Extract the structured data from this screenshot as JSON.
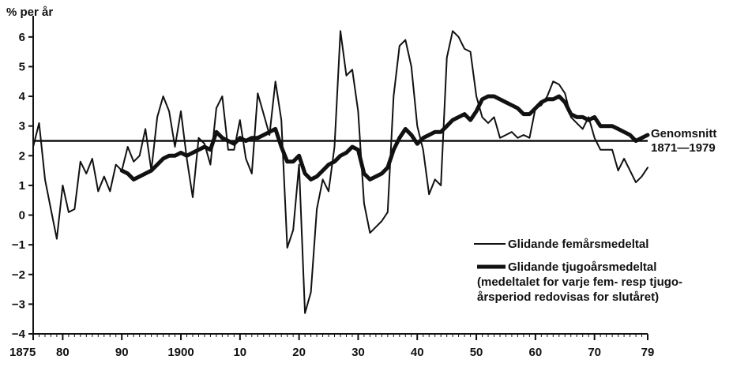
{
  "chart_data": {
    "type": "line",
    "ylabel": "% per år",
    "ylim": [
      -4,
      6.5
    ],
    "yticks": [
      6,
      5,
      4,
      3,
      2,
      1,
      0,
      -1,
      -2,
      -3,
      -4
    ],
    "ytick_labels": [
      "6",
      "5",
      "4",
      "3",
      "2",
      "1",
      "0",
      "−1",
      "−2",
      "−3",
      "−4"
    ],
    "xlim": [
      1875,
      1979
    ],
    "xticks": [
      1875,
      1880,
      1890,
      1900,
      1910,
      1920,
      1930,
      1940,
      1950,
      1960,
      1970,
      1979
    ],
    "xtick_labels": [
      "1875",
      "80",
      "90",
      "1900",
      "10",
      "20",
      "30",
      "40",
      "50",
      "60",
      "70",
      "79"
    ],
    "reference_line": {
      "value": 2.5,
      "label_line1": "Genomsnitt",
      "label_line2": "1871—1979"
    },
    "legend": {
      "placement": "bottom-right",
      "entry1": "Glidande femårsmedeltal",
      "entry2_line1": "Glidande tjugoårsmedeltal",
      "entry2_line2": "(medeltalet for varje fem- resp tjugo-",
      "entry2_line3": "årsperiod redovisas for slutåret)"
    },
    "series": [
      {
        "style": "thin",
        "x": [
          1875,
          1876,
          1877,
          1878,
          1879,
          1880,
          1881,
          1882,
          1883,
          1884,
          1885,
          1886,
          1887,
          1888,
          1889,
          1890,
          1891,
          1892,
          1893,
          1894,
          1895,
          1896,
          1897,
          1898,
          1899,
          1900,
          1901,
          1902,
          1903,
          1904,
          1905,
          1906,
          1907,
          1908,
          1909,
          1910,
          1911,
          1912,
          1913,
          1914,
          1915,
          1916,
          1917,
          1918,
          1919,
          1920,
          1921,
          1922,
          1923,
          1924,
          1925,
          1926,
          1927,
          1928,
          1929,
          1930,
          1931,
          1932,
          1933,
          1934,
          1935,
          1936,
          1937,
          1938,
          1939,
          1940,
          1941,
          1942,
          1943,
          1944,
          1945,
          1946,
          1947,
          1948,
          1949,
          1950,
          1951,
          1952,
          1953,
          1954,
          1955,
          1956,
          1957,
          1958,
          1959,
          1960,
          1961,
          1962,
          1963,
          1964,
          1965,
          1966,
          1967,
          1968,
          1969,
          1970,
          1971,
          1972,
          1973,
          1974,
          1975,
          1976,
          1977,
          1978,
          1979
        ],
        "y": [
          2.3,
          3.1,
          1.2,
          0.2,
          -0.8,
          1.0,
          0.1,
          0.2,
          1.8,
          1.4,
          1.9,
          0.8,
          1.3,
          0.8,
          1.7,
          1.5,
          2.3,
          1.8,
          2.0,
          2.9,
          1.5,
          3.3,
          4.0,
          3.5,
          2.3,
          3.5,
          1.9,
          0.6,
          2.6,
          2.4,
          1.7,
          3.6,
          4.0,
          2.2,
          2.2,
          3.2,
          1.9,
          1.4,
          4.1,
          3.4,
          2.7,
          4.5,
          3.2,
          -1.1,
          -0.5,
          1.7,
          -3.3,
          -2.6,
          0.2,
          1.2,
          0.8,
          2.3,
          6.2,
          4.7,
          4.9,
          3.5,
          0.4,
          -0.6,
          -0.4,
          -0.2,
          0.1,
          4.0,
          5.7,
          5.9,
          5.0,
          3.0,
          2.2,
          0.7,
          1.2,
          1.0,
          5.3,
          6.2,
          6.0,
          5.6,
          5.5,
          4.0,
          3.3,
          3.1,
          3.3,
          2.6,
          2.7,
          2.8,
          2.6,
          2.7,
          2.6,
          3.6,
          3.7,
          4.0,
          4.5,
          4.4,
          4.1,
          3.3,
          3.1,
          2.9,
          3.3,
          2.6,
          2.2,
          2.2,
          2.2,
          1.5,
          1.9,
          1.5,
          1.1,
          1.3,
          1.6
        ]
      },
      {
        "style": "thick",
        "x": [
          1890,
          1891,
          1892,
          1893,
          1894,
          1895,
          1896,
          1897,
          1898,
          1899,
          1900,
          1901,
          1902,
          1903,
          1904,
          1905,
          1906,
          1907,
          1908,
          1909,
          1910,
          1911,
          1912,
          1913,
          1914,
          1915,
          1916,
          1917,
          1918,
          1919,
          1920,
          1921,
          1922,
          1923,
          1924,
          1925,
          1926,
          1927,
          1928,
          1929,
          1930,
          1931,
          1932,
          1933,
          1934,
          1935,
          1936,
          1937,
          1938,
          1939,
          1940,
          1941,
          1942,
          1943,
          1944,
          1945,
          1946,
          1947,
          1948,
          1949,
          1950,
          1951,
          1952,
          1953,
          1954,
          1955,
          1956,
          1957,
          1958,
          1959,
          1960,
          1961,
          1962,
          1963,
          1964,
          1965,
          1966,
          1967,
          1968,
          1969,
          1970,
          1971,
          1972,
          1973,
          1974,
          1975,
          1976,
          1977,
          1978,
          1979
        ],
        "y": [
          1.5,
          1.4,
          1.2,
          1.3,
          1.4,
          1.5,
          1.7,
          1.9,
          2.0,
          2.0,
          2.1,
          2.0,
          2.1,
          2.2,
          2.3,
          2.2,
          2.8,
          2.6,
          2.5,
          2.4,
          2.6,
          2.5,
          2.6,
          2.6,
          2.7,
          2.8,
          2.9,
          2.3,
          1.8,
          1.8,
          2.0,
          1.4,
          1.2,
          1.3,
          1.5,
          1.7,
          1.8,
          2.0,
          2.1,
          2.3,
          2.2,
          1.4,
          1.2,
          1.3,
          1.4,
          1.6,
          2.2,
          2.6,
          2.9,
          2.7,
          2.4,
          2.6,
          2.7,
          2.8,
          2.8,
          3.0,
          3.2,
          3.3,
          3.4,
          3.2,
          3.5,
          3.9,
          4.0,
          4.0,
          3.9,
          3.8,
          3.7,
          3.6,
          3.4,
          3.4,
          3.6,
          3.8,
          3.9,
          3.9,
          4.0,
          3.8,
          3.4,
          3.3,
          3.3,
          3.2,
          3.3,
          3.0,
          3.0,
          3.0,
          2.9,
          2.8,
          2.7,
          2.5,
          2.6,
          2.7
        ]
      }
    ]
  }
}
